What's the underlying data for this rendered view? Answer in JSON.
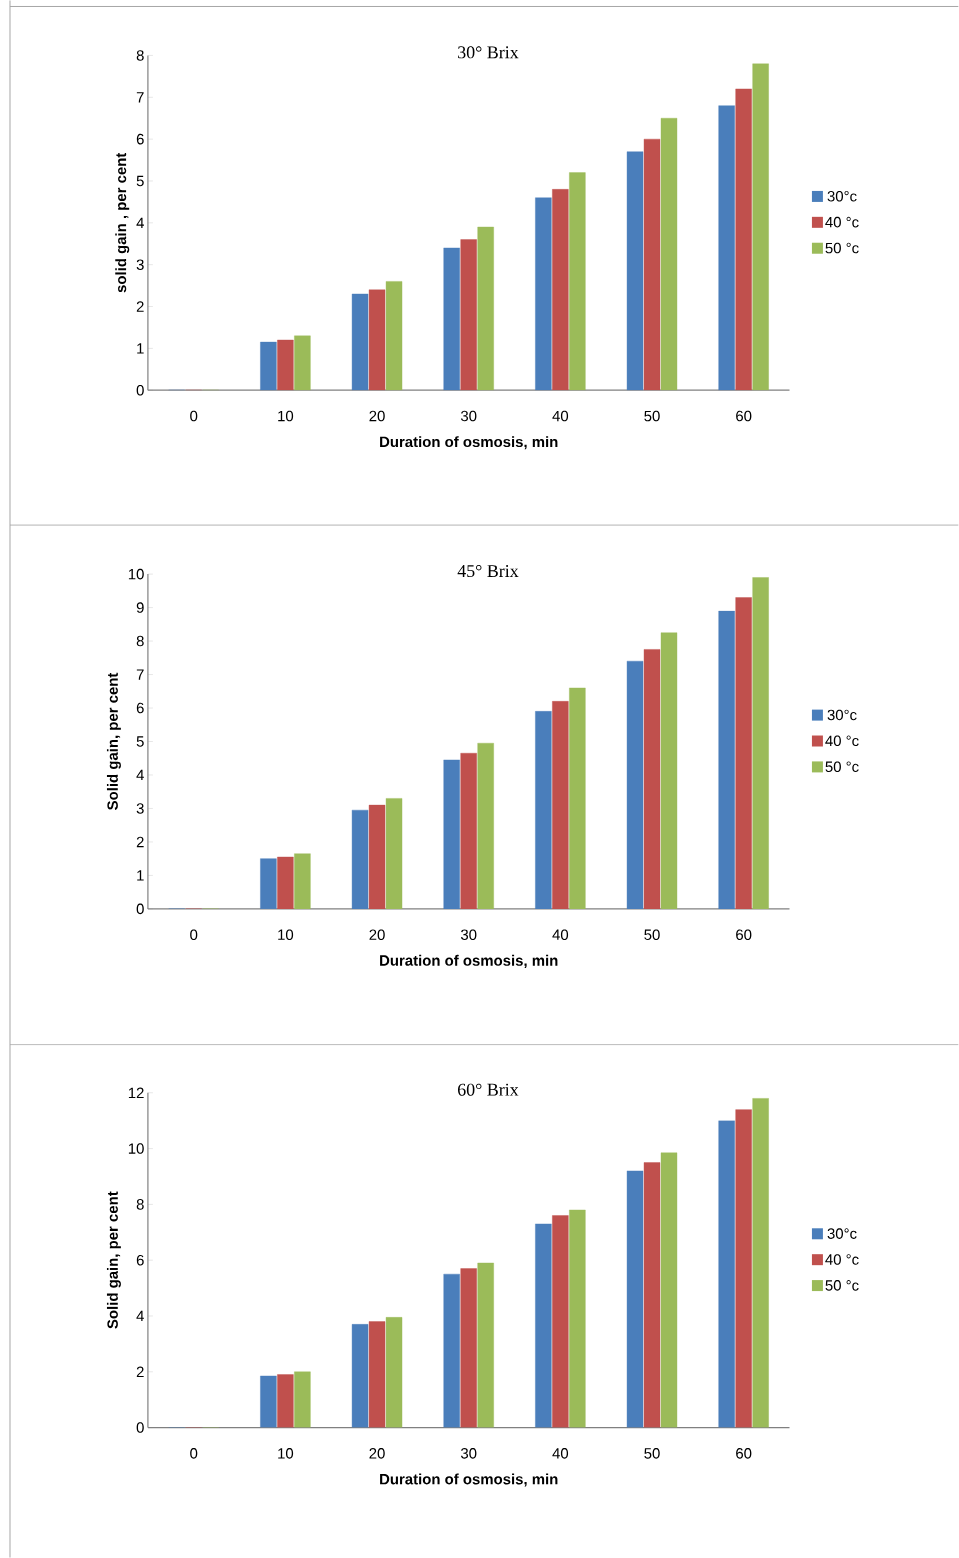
{
  "chart_data": [
    {
      "type": "bar",
      "title": "30° Brix",
      "xlabel": "Duration of osmosis, min",
      "ylabel": "solid gain , per cent",
      "categories": [
        "0",
        "10",
        "20",
        "30",
        "40",
        "50",
        "60"
      ],
      "series": [
        {
          "name": "30°c",
          "color": "#4a7ebb",
          "values": [
            0,
            1.15,
            2.3,
            3.4,
            4.6,
            5.7,
            6.8
          ]
        },
        {
          "name": "40 °c",
          "color": "#c0504d",
          "values": [
            0,
            1.2,
            2.4,
            3.6,
            4.8,
            6.0,
            7.2
          ]
        },
        {
          "name": "50 °c",
          "color": "#9bbb59",
          "values": [
            0,
            1.3,
            2.6,
            3.9,
            5.2,
            6.5,
            7.8
          ]
        }
      ],
      "ylim": [
        0,
        8
      ],
      "yticks": [
        0,
        1,
        2,
        3,
        4,
        5,
        6,
        7,
        8
      ],
      "grid": false,
      "legend": "right"
    },
    {
      "type": "bar",
      "title": "45° Brix",
      "xlabel": "Duration of osmosis, min",
      "ylabel": "Solid gain, per cent",
      "categories": [
        "0",
        "10",
        "20",
        "30",
        "40",
        "50",
        "60"
      ],
      "series": [
        {
          "name": "30°c",
          "color": "#4a7ebb",
          "values": [
            0,
            1.5,
            2.95,
            4.45,
            5.9,
            7.4,
            8.9
          ]
        },
        {
          "name": "40 °c",
          "color": "#c0504d",
          "values": [
            0,
            1.55,
            3.1,
            4.65,
            6.2,
            7.75,
            9.3
          ]
        },
        {
          "name": "50 °c",
          "color": "#9bbb59",
          "values": [
            0,
            1.65,
            3.3,
            4.95,
            6.6,
            8.25,
            9.9
          ]
        }
      ],
      "ylim": [
        0,
        10
      ],
      "yticks": [
        0,
        1,
        2,
        3,
        4,
        5,
        6,
        7,
        8,
        9,
        10
      ],
      "grid": false,
      "legend": "right"
    },
    {
      "type": "bar",
      "title": "60° Brix",
      "xlabel": "Duration of osmosis, min",
      "ylabel": "Solid gain, per cent",
      "categories": [
        "0",
        "10",
        "20",
        "30",
        "40",
        "50",
        "60"
      ],
      "series": [
        {
          "name": "30°c",
          "color": "#4a7ebb",
          "values": [
            0,
            1.85,
            3.7,
            5.5,
            7.3,
            9.2,
            11.0
          ]
        },
        {
          "name": "40 °c",
          "color": "#c0504d",
          "values": [
            0,
            1.9,
            3.8,
            5.7,
            7.6,
            9.5,
            11.4
          ]
        },
        {
          "name": "50 °c",
          "color": "#9bbb59",
          "values": [
            0,
            2.0,
            3.95,
            5.9,
            7.8,
            9.85,
            11.8
          ]
        }
      ],
      "ylim": [
        0,
        12
      ],
      "yticks": [
        0,
        2,
        4,
        6,
        8,
        10,
        12
      ],
      "grid": false,
      "legend": "right"
    }
  ]
}
